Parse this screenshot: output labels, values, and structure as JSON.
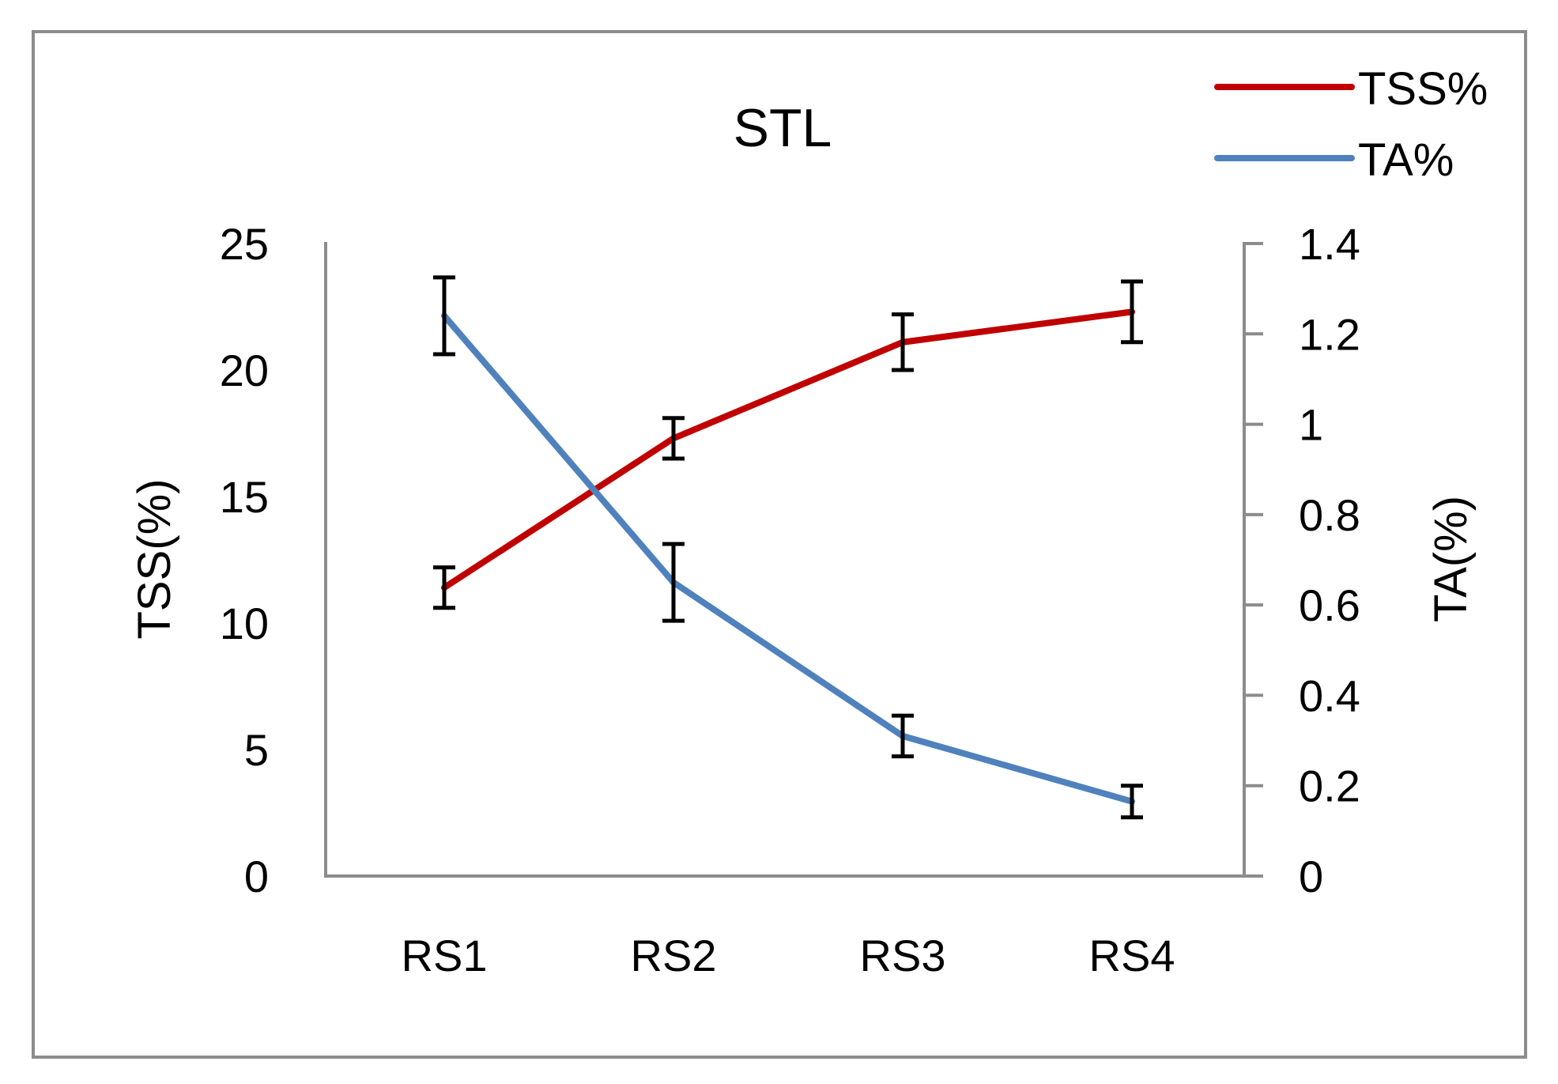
{
  "chart_data": {
    "type": "line",
    "title": "STL",
    "categories": [
      "RS1",
      "RS2",
      "RS3",
      "RS4"
    ],
    "y_left": {
      "label": "TSS(%)",
      "range": [
        0,
        25
      ],
      "ticks": [
        "0",
        "5",
        "10",
        "15",
        "20",
        "25"
      ]
    },
    "y_right": {
      "label": "TA(%)",
      "range": [
        0,
        1.4
      ],
      "ticks": [
        "0",
        "0.2",
        "0.4",
        "0.6",
        "0.8",
        "1",
        "1.2",
        "1.4"
      ]
    },
    "series": [
      {
        "name": "TSS%",
        "axis": "left",
        "color": "#c00000",
        "values": [
          11.4,
          17.3,
          21.1,
          22.3
        ],
        "error": [
          0.8,
          0.8,
          1.1,
          1.2
        ]
      },
      {
        "name": "TA%",
        "axis": "right",
        "color": "#4f81bd",
        "values": [
          1.24,
          0.65,
          0.31,
          0.165
        ],
        "error": [
          0.085,
          0.085,
          0.045,
          0.035
        ]
      }
    ],
    "legend": {
      "position": "top-right",
      "entries": [
        "TSS%",
        "TA%"
      ]
    },
    "grid": false
  }
}
